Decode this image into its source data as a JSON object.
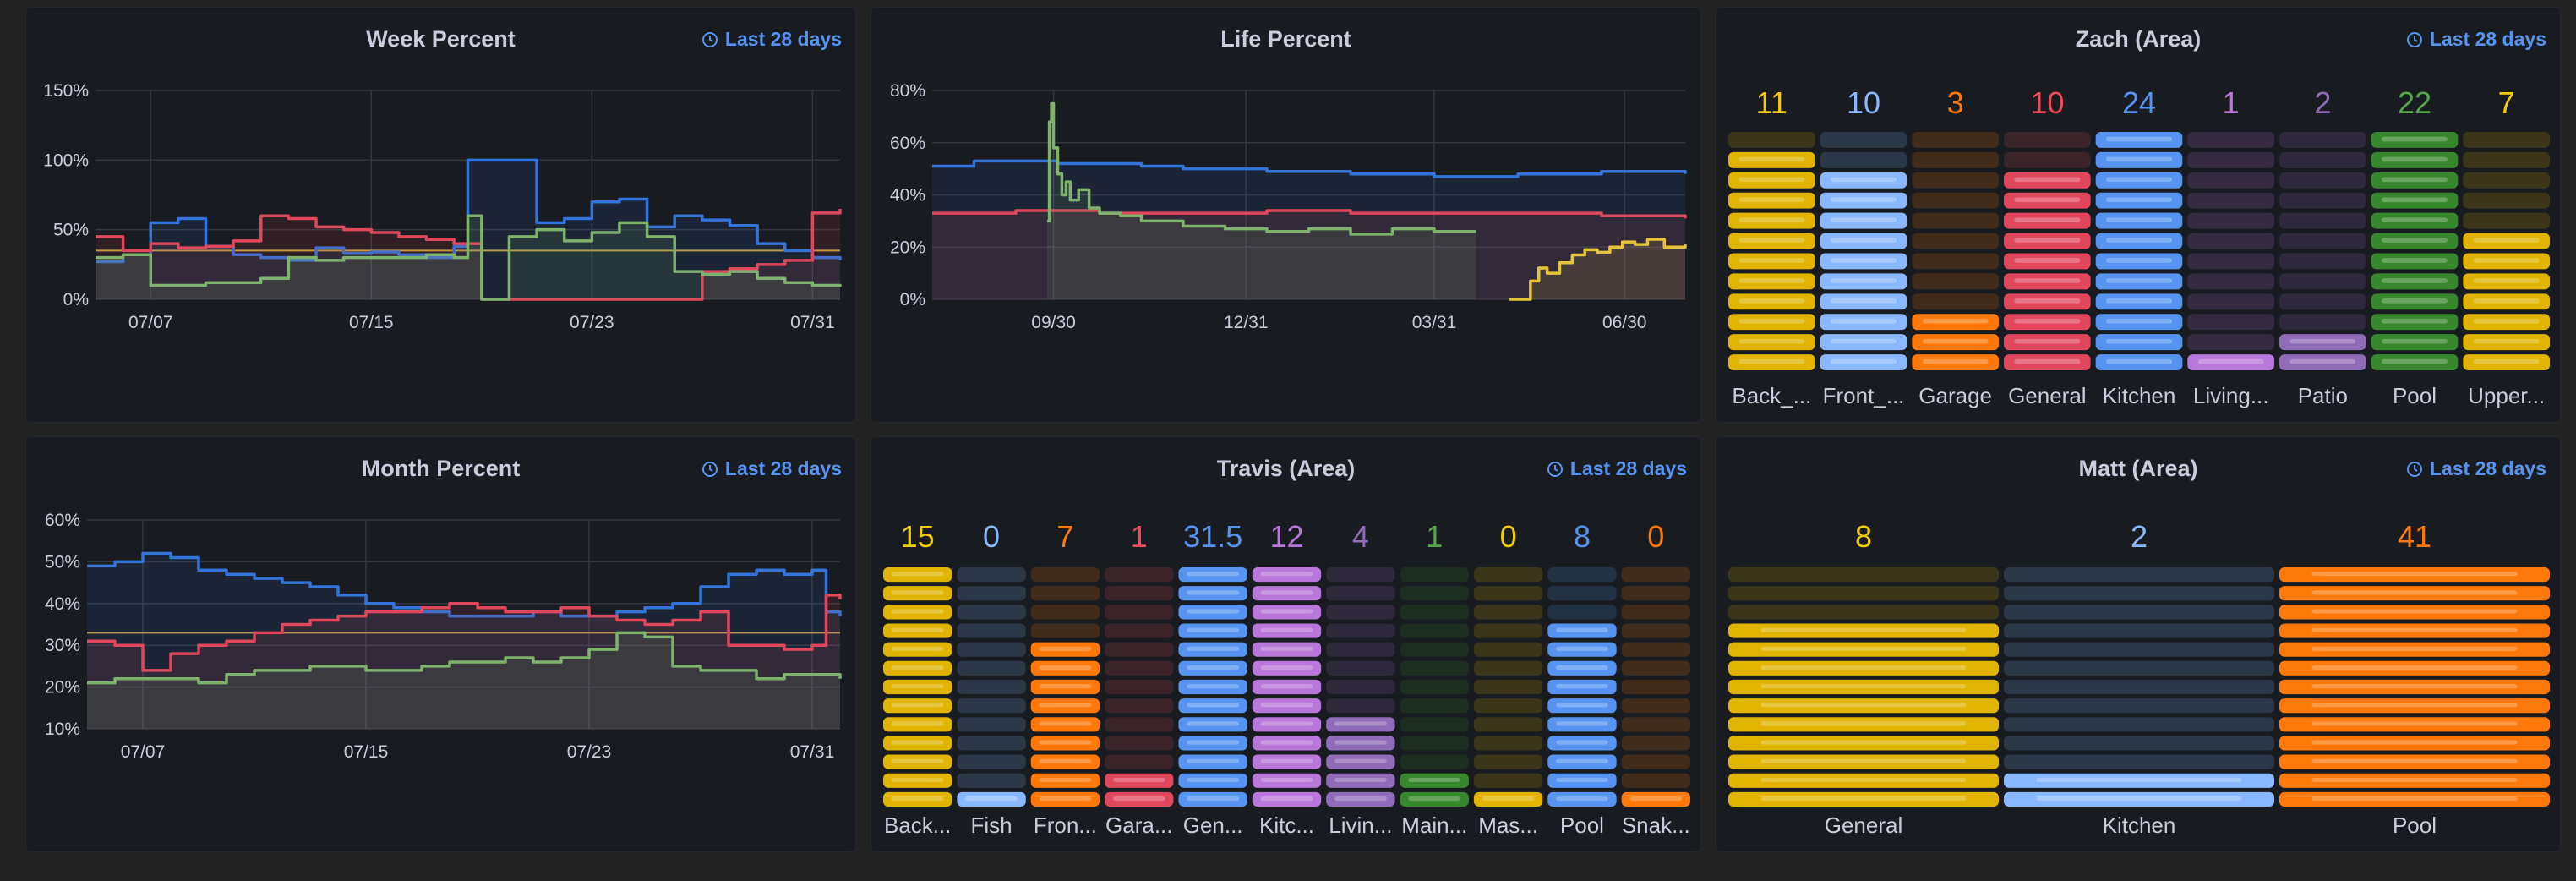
{
  "colors": {
    "blue": "#3274d9",
    "red": "#e0475d",
    "green": "#7eb26d",
    "yellow": "#e5c439",
    "orange": "#ff780a",
    "purple": "#b877d9",
    "lightblue": "#8ab8ff"
  },
  "panels": {
    "week": {
      "title": "Week Percent",
      "time": "Last 28 days"
    },
    "life": {
      "title": "Life Percent",
      "time": ""
    },
    "zach": {
      "title": "Zach (Area)",
      "time": "Last 28 days"
    },
    "month": {
      "title": "Month Percent",
      "time": "Last 28 days"
    },
    "travis": {
      "title": "Travis (Area)",
      "time": "Last 28 days"
    },
    "matt": {
      "title": "Matt (Area)",
      "time": "Last 28 days"
    }
  },
  "chart_data": [
    {
      "id": "week",
      "type": "line",
      "title": "Week Percent",
      "yticks": [
        "0%",
        "50%",
        "100%",
        "150%"
      ],
      "ylim": [
        0,
        150
      ],
      "xticks": [
        "07/07",
        "07/15",
        "07/23",
        "07/31"
      ],
      "xlim": [
        0,
        27
      ],
      "xtick_pos": [
        2,
        10,
        18,
        26
      ],
      "threshold": 35,
      "series": [
        {
          "color": "blue",
          "x": [
            0,
            1,
            2,
            3,
            4,
            5,
            6,
            7,
            8,
            9,
            10,
            11,
            12,
            13,
            13.5,
            14,
            15,
            16,
            17,
            18,
            19,
            20,
            21,
            22,
            23,
            24,
            25,
            26,
            27
          ],
          "values": [
            27,
            32,
            55,
            58,
            38,
            32,
            30,
            28,
            37,
            33,
            34,
            32,
            30,
            38,
            100,
            100,
            100,
            55,
            58,
            70,
            72,
            52,
            60,
            57,
            53,
            40,
            35,
            30,
            28
          ]
        },
        {
          "color": "red",
          "x": [
            0,
            1,
            2,
            3,
            4,
            5,
            6,
            7,
            8,
            9,
            10,
            11,
            12,
            13,
            14,
            15,
            16,
            17,
            18,
            19,
            20,
            21,
            22,
            23,
            24,
            25,
            26,
            27
          ],
          "values": [
            45,
            35,
            40,
            37,
            38,
            42,
            60,
            58,
            52,
            50,
            48,
            45,
            43,
            40,
            0,
            0,
            0,
            0,
            0,
            0,
            0,
            0,
            20,
            22,
            25,
            28,
            62,
            65
          ]
        },
        {
          "color": "green",
          "x": [
            0,
            1,
            2,
            3,
            4,
            5,
            6,
            7,
            8,
            9,
            10,
            11,
            12,
            13,
            13.5,
            14,
            15,
            16,
            17,
            18,
            19,
            20,
            21,
            22,
            23,
            24,
            25,
            26,
            27
          ],
          "values": [
            30,
            32,
            10,
            10,
            12,
            12,
            15,
            30,
            28,
            30,
            30,
            30,
            32,
            30,
            60,
            0,
            45,
            50,
            42,
            48,
            55,
            45,
            20,
            18,
            20,
            15,
            12,
            10,
            9
          ]
        }
      ]
    },
    {
      "id": "life",
      "type": "line",
      "title": "Life Percent",
      "yticks": [
        "0%",
        "20%",
        "40%",
        "60%",
        "80%"
      ],
      "ylim": [
        0,
        80
      ],
      "xticks": [
        "09/30",
        "12/31",
        "03/31",
        "06/30"
      ],
      "xlim": [
        0,
        360
      ],
      "xtick_pos": [
        58,
        150,
        240,
        331
      ],
      "series": [
        {
          "color": "blue",
          "x": [
            0,
            20,
            40,
            60,
            80,
            100,
            120,
            140,
            160,
            180,
            200,
            220,
            240,
            260,
            280,
            300,
            320,
            340,
            360
          ],
          "values": [
            51,
            53,
            53,
            52,
            52,
            51,
            50,
            50,
            49,
            49,
            48,
            48,
            47,
            47,
            48,
            48,
            49,
            49,
            48
          ]
        },
        {
          "color": "red",
          "x": [
            0,
            40,
            80,
            120,
            160,
            200,
            240,
            280,
            320,
            360
          ],
          "values": [
            33,
            34,
            33,
            33,
            34,
            33,
            33,
            33,
            32,
            31
          ]
        },
        {
          "color": "green",
          "x": [
            55,
            56,
            57,
            58,
            60,
            62,
            64,
            66,
            70,
            75,
            80,
            90,
            100,
            120,
            140,
            160,
            180,
            200,
            220,
            240,
            260
          ],
          "values": [
            30,
            68,
            75,
            58,
            48,
            40,
            45,
            38,
            42,
            35,
            33,
            32,
            30,
            28,
            27,
            26,
            27,
            25,
            27,
            26,
            26
          ]
        },
        {
          "color": "yellow",
          "x": [
            276,
            282,
            286,
            290,
            294,
            300,
            306,
            312,
            318,
            324,
            330,
            336,
            342,
            350,
            360
          ],
          "values": [
            0,
            0,
            7,
            12,
            10,
            14,
            17,
            19,
            18,
            20,
            22,
            21,
            23,
            20,
            21
          ]
        }
      ]
    },
    {
      "id": "month",
      "type": "line",
      "title": "Month Percent",
      "yticks": [
        "10%",
        "20%",
        "30%",
        "40%",
        "50%",
        "60%"
      ],
      "ylim": [
        10,
        60
      ],
      "xticks": [
        "07/07",
        "07/15",
        "07/23",
        "07/31"
      ],
      "xlim": [
        0,
        27
      ],
      "xtick_pos": [
        2,
        10,
        18,
        26
      ],
      "threshold": 33,
      "series": [
        {
          "color": "blue",
          "x": [
            0,
            1,
            2,
            3,
            4,
            5,
            6,
            7,
            8,
            9,
            10,
            11,
            12,
            13,
            14,
            15,
            16,
            17,
            18,
            19,
            20,
            21,
            22,
            23,
            24,
            25,
            26,
            26.5,
            27
          ],
          "values": [
            49,
            50,
            52,
            51,
            48,
            47,
            46,
            45,
            44,
            42,
            40,
            39,
            38,
            37,
            37,
            37,
            38,
            37,
            37,
            38,
            39,
            40,
            44,
            47,
            48,
            47,
            48,
            38,
            37
          ]
        },
        {
          "color": "red",
          "x": [
            0,
            1,
            2,
            3,
            4,
            5,
            6,
            7,
            8,
            9,
            10,
            11,
            12,
            13,
            14,
            15,
            16,
            17,
            18,
            19,
            20,
            21,
            22,
            23,
            24,
            25,
            26,
            26.5,
            27
          ],
          "values": [
            31,
            30,
            24,
            28,
            30,
            31,
            33,
            35,
            36,
            37,
            38,
            38,
            39,
            40,
            39,
            38,
            38,
            39,
            37,
            36,
            35,
            36,
            38,
            30,
            30,
            29,
            30,
            42,
            41
          ]
        },
        {
          "color": "green",
          "x": [
            0,
            1,
            2,
            3,
            4,
            5,
            6,
            7,
            8,
            9,
            10,
            11,
            12,
            13,
            14,
            15,
            16,
            17,
            18,
            19,
            20,
            21,
            22,
            23,
            24,
            25,
            26,
            27
          ],
          "values": [
            21,
            22,
            22,
            22,
            21,
            23,
            24,
            24,
            25,
            25,
            24,
            24,
            25,
            26,
            26,
            27,
            26,
            27,
            29,
            33,
            32,
            25,
            24,
            24,
            22,
            23,
            23,
            22
          ]
        }
      ]
    }
  ],
  "gauges": {
    "zach": [
      {
        "label": "Back_...",
        "value": "11",
        "n": 11,
        "color": "yellow"
      },
      {
        "label": "Front_...",
        "value": "10",
        "n": 10,
        "color": "lightblue"
      },
      {
        "label": "Garage",
        "value": "3",
        "n": 3,
        "color": "orange"
      },
      {
        "label": "General",
        "value": "10",
        "n": 10,
        "color": "red"
      },
      {
        "label": "Kitchen",
        "value": "24",
        "n": 12,
        "color": "blue"
      },
      {
        "label": "Living...",
        "value": "1",
        "n": 1,
        "color": "purple"
      },
      {
        "label": "Patio",
        "value": "2",
        "n": 2,
        "color": "violet"
      },
      {
        "label": "Pool",
        "value": "22",
        "n": 12,
        "color": "green"
      },
      {
        "label": "Upper...",
        "value": "7",
        "n": 7,
        "color": "yellow"
      }
    ],
    "travis": [
      {
        "label": "Back...",
        "value": "15",
        "n": 13,
        "color": "yellow"
      },
      {
        "label": "Fish",
        "value": "0",
        "n": 1,
        "color": "lightblue"
      },
      {
        "label": "Fron...",
        "value": "7",
        "n": 9,
        "color": "orange"
      },
      {
        "label": "Gara...",
        "value": "1",
        "n": 2,
        "color": "red"
      },
      {
        "label": "Gen...",
        "value": "31.5",
        "n": 13,
        "color": "blue"
      },
      {
        "label": "Kitc...",
        "value": "12",
        "n": 13,
        "color": "purple"
      },
      {
        "label": "Livin...",
        "value": "4",
        "n": 5,
        "color": "violet"
      },
      {
        "label": "Main...",
        "value": "1",
        "n": 2,
        "color": "green"
      },
      {
        "label": "Mas...",
        "value": "0",
        "n": 1,
        "color": "yellow"
      },
      {
        "label": "Pool",
        "value": "8",
        "n": 10,
        "color": "blue"
      },
      {
        "label": "Snak...",
        "value": "0",
        "n": 1,
        "color": "orange"
      }
    ],
    "matt": [
      {
        "label": "General",
        "value": "8",
        "n": 10,
        "color": "yellow"
      },
      {
        "label": "Kitchen",
        "value": "2",
        "n": 2,
        "color": "lightblue"
      },
      {
        "label": "Pool",
        "value": "41",
        "n": 13,
        "color": "orange"
      }
    ]
  },
  "gauge_colors": {
    "yellow": "#e0b400",
    "lightblue": "#8ab8ff",
    "orange": "#ff780a",
    "red": "#e0475d",
    "blue": "#5794f2",
    "purple": "#b877d9",
    "violet": "#8f6bb8",
    "green": "#37872d"
  },
  "gauge_value_colors": {
    "yellow": "#f2cc0c",
    "lightblue": "#8ab8ff",
    "orange": "#ff780a",
    "red": "#f2495c",
    "blue": "#5794f2",
    "purple": "#b877d9",
    "violet": "#8f6bb8",
    "green": "#56a64b"
  }
}
